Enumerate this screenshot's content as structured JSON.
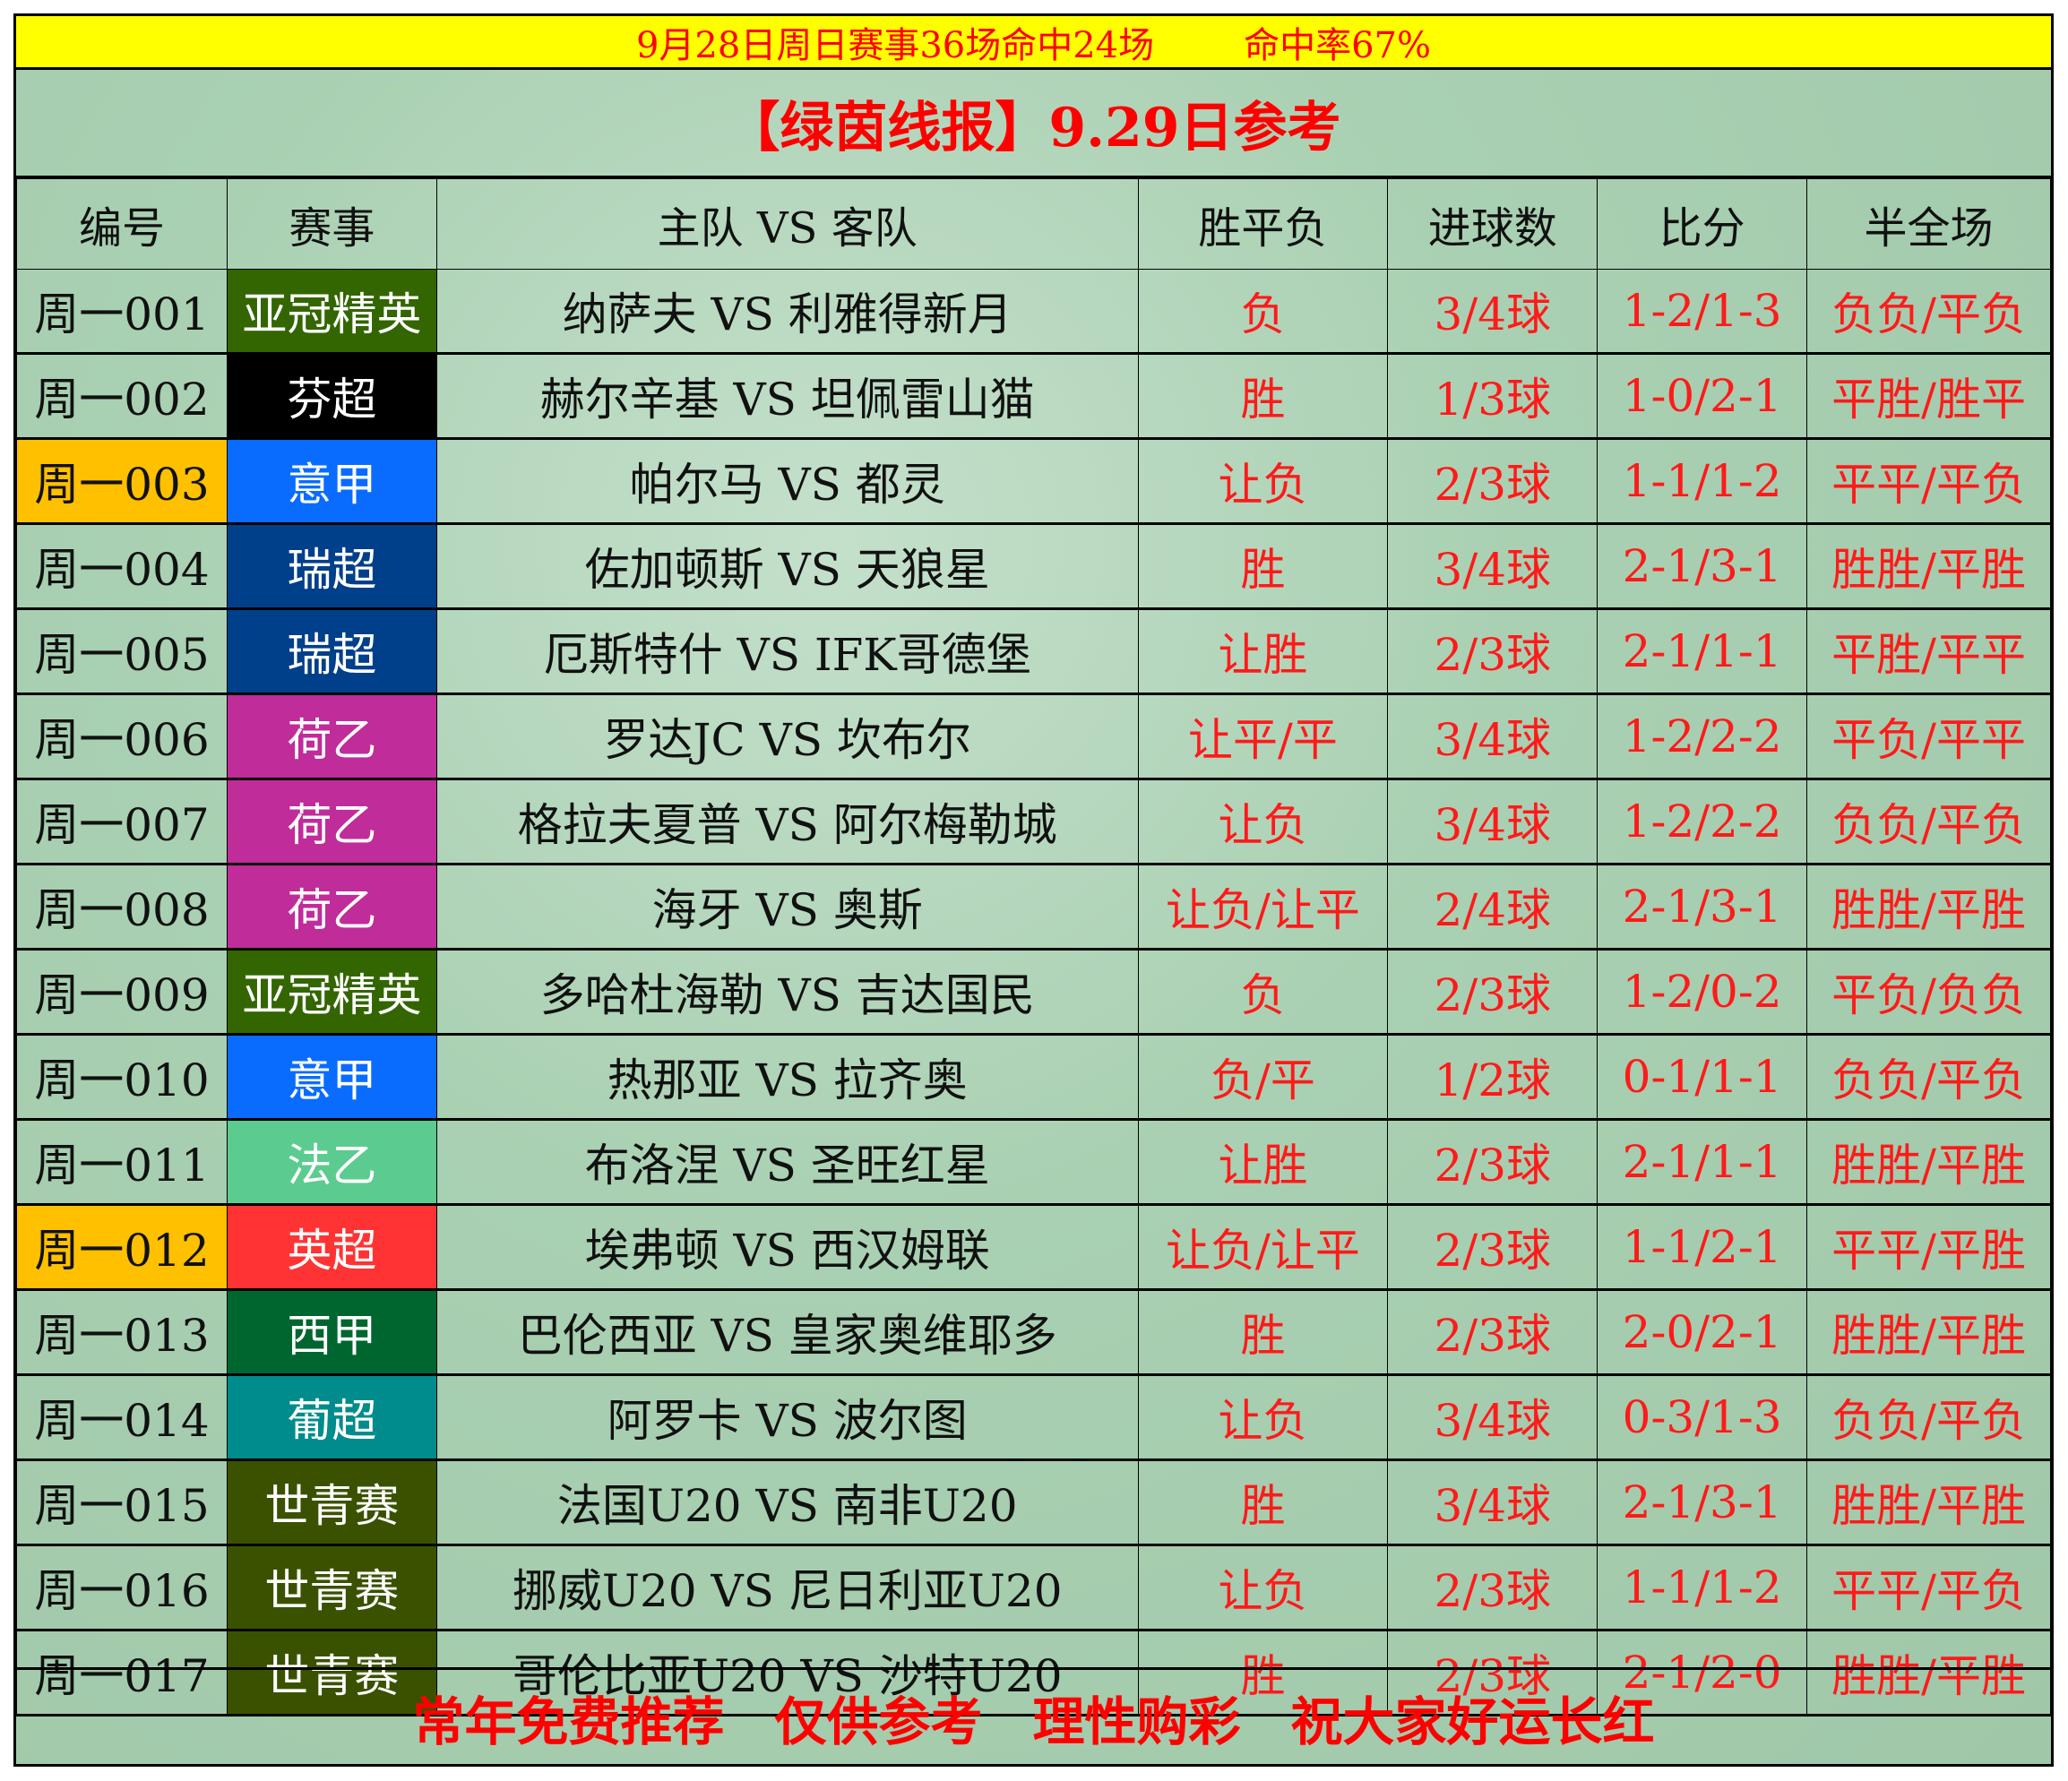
{
  "topbar": {
    "summary": "9月28日周日赛事36场命中24场",
    "rate": "命中率67%"
  },
  "title": "【绿茵线报】9.29日参考",
  "headers": [
    "编号",
    "赛事",
    "主队 VS 客队",
    "胜平负",
    "进球数",
    "比分",
    "半全场"
  ],
  "colors": {
    "yellow_bar": "#ffff00",
    "red_text": "#ff1a1a",
    "highlight_id": "#ffc000",
    "background": "#a9d0b2"
  },
  "league_colors": {
    "亚冠精英": "#336600",
    "芬超": "#000000",
    "意甲": "#0a6cff",
    "瑞超": "#003f8a",
    "荷乙": "#c02c9a",
    "法乙": "#5ccb8f",
    "英超": "#ff3333",
    "西甲": "#00662f",
    "葡超": "#008c8c",
    "世青赛": "#3a5200"
  },
  "rows": [
    {
      "id": "周一001",
      "league": "亚冠精英",
      "match": "纳萨夫 VS 利雅得新月",
      "result": "负",
      "goals": "3/4球",
      "score": "1-2/1-3",
      "half_full": "负负/平负",
      "highlight": false
    },
    {
      "id": "周一002",
      "league": "芬超",
      "match": "赫尔辛基 VS 坦佩雷山猫",
      "result": "胜",
      "goals": "1/3球",
      "score": "1-0/2-1",
      "half_full": "平胜/胜平",
      "highlight": false
    },
    {
      "id": "周一003",
      "league": "意甲",
      "match": "帕尔马 VS 都灵",
      "result": "让负",
      "goals": "2/3球",
      "score": "1-1/1-2",
      "half_full": "平平/平负",
      "highlight": true
    },
    {
      "id": "周一004",
      "league": "瑞超",
      "match": "佐加顿斯 VS 天狼星",
      "result": "胜",
      "goals": "3/4球",
      "score": "2-1/3-1",
      "half_full": "胜胜/平胜",
      "highlight": false
    },
    {
      "id": "周一005",
      "league": "瑞超",
      "match": "厄斯特什 VS IFK哥德堡",
      "result": "让胜",
      "goals": "2/3球",
      "score": "2-1/1-1",
      "half_full": "平胜/平平",
      "highlight": false
    },
    {
      "id": "周一006",
      "league": "荷乙",
      "match": "罗达JC VS 坎布尔",
      "result": "让平/平",
      "goals": "3/4球",
      "score": "1-2/2-2",
      "half_full": "平负/平平",
      "highlight": false
    },
    {
      "id": "周一007",
      "league": "荷乙",
      "match": "格拉夫夏普 VS 阿尔梅勒城",
      "result": "让负",
      "goals": "3/4球",
      "score": "1-2/2-2",
      "half_full": "负负/平负",
      "highlight": false
    },
    {
      "id": "周一008",
      "league": "荷乙",
      "match": "海牙 VS 奥斯",
      "result": "让负/让平",
      "goals": "2/4球",
      "score": "2-1/3-1",
      "half_full": "胜胜/平胜",
      "highlight": false
    },
    {
      "id": "周一009",
      "league": "亚冠精英",
      "match": "多哈杜海勒 VS 吉达国民",
      "result": "负",
      "goals": "2/3球",
      "score": "1-2/0-2",
      "half_full": "平负/负负",
      "highlight": false
    },
    {
      "id": "周一010",
      "league": "意甲",
      "match": "热那亚 VS 拉齐奥",
      "result": "负/平",
      "goals": "1/2球",
      "score": "0-1/1-1",
      "half_full": "负负/平负",
      "highlight": false
    },
    {
      "id": "周一011",
      "league": "法乙",
      "match": "布洛涅 VS 圣旺红星",
      "result": "让胜",
      "goals": "2/3球",
      "score": "2-1/1-1",
      "half_full": "胜胜/平胜",
      "highlight": false
    },
    {
      "id": "周一012",
      "league": "英超",
      "match": "埃弗顿 VS 西汉姆联",
      "result": "让负/让平",
      "goals": "2/3球",
      "score": "1-1/2-1",
      "half_full": "平平/平胜",
      "highlight": true
    },
    {
      "id": "周一013",
      "league": "西甲",
      "match": "巴伦西亚 VS 皇家奥维耶多",
      "result": "胜",
      "goals": "2/3球",
      "score": "2-0/2-1",
      "half_full": "胜胜/平胜",
      "highlight": false
    },
    {
      "id": "周一014",
      "league": "葡超",
      "match": "阿罗卡 VS 波尔图",
      "result": "让负",
      "goals": "3/4球",
      "score": "0-3/1-3",
      "half_full": "负负/平负",
      "highlight": false
    },
    {
      "id": "周一015",
      "league": "世青赛",
      "match": "法国U20 VS 南非U20",
      "result": "胜",
      "goals": "3/4球",
      "score": "2-1/3-1",
      "half_full": "胜胜/平胜",
      "highlight": false
    },
    {
      "id": "周一016",
      "league": "世青赛",
      "match": "挪威U20 VS 尼日利亚U20",
      "result": "让负",
      "goals": "2/3球",
      "score": "1-1/1-2",
      "half_full": "平平/平负",
      "highlight": false
    },
    {
      "id": "周一017",
      "league": "世青赛",
      "match": "哥伦比亚U20 VS 沙特U20",
      "result": "胜",
      "goals": "2/3球",
      "score": "2-1/2-0",
      "half_full": "胜胜/平胜",
      "highlight": false
    }
  ],
  "footer": [
    "常年免费推荐",
    "仅供参考",
    "理性购彩",
    "祝大家好运长红"
  ]
}
